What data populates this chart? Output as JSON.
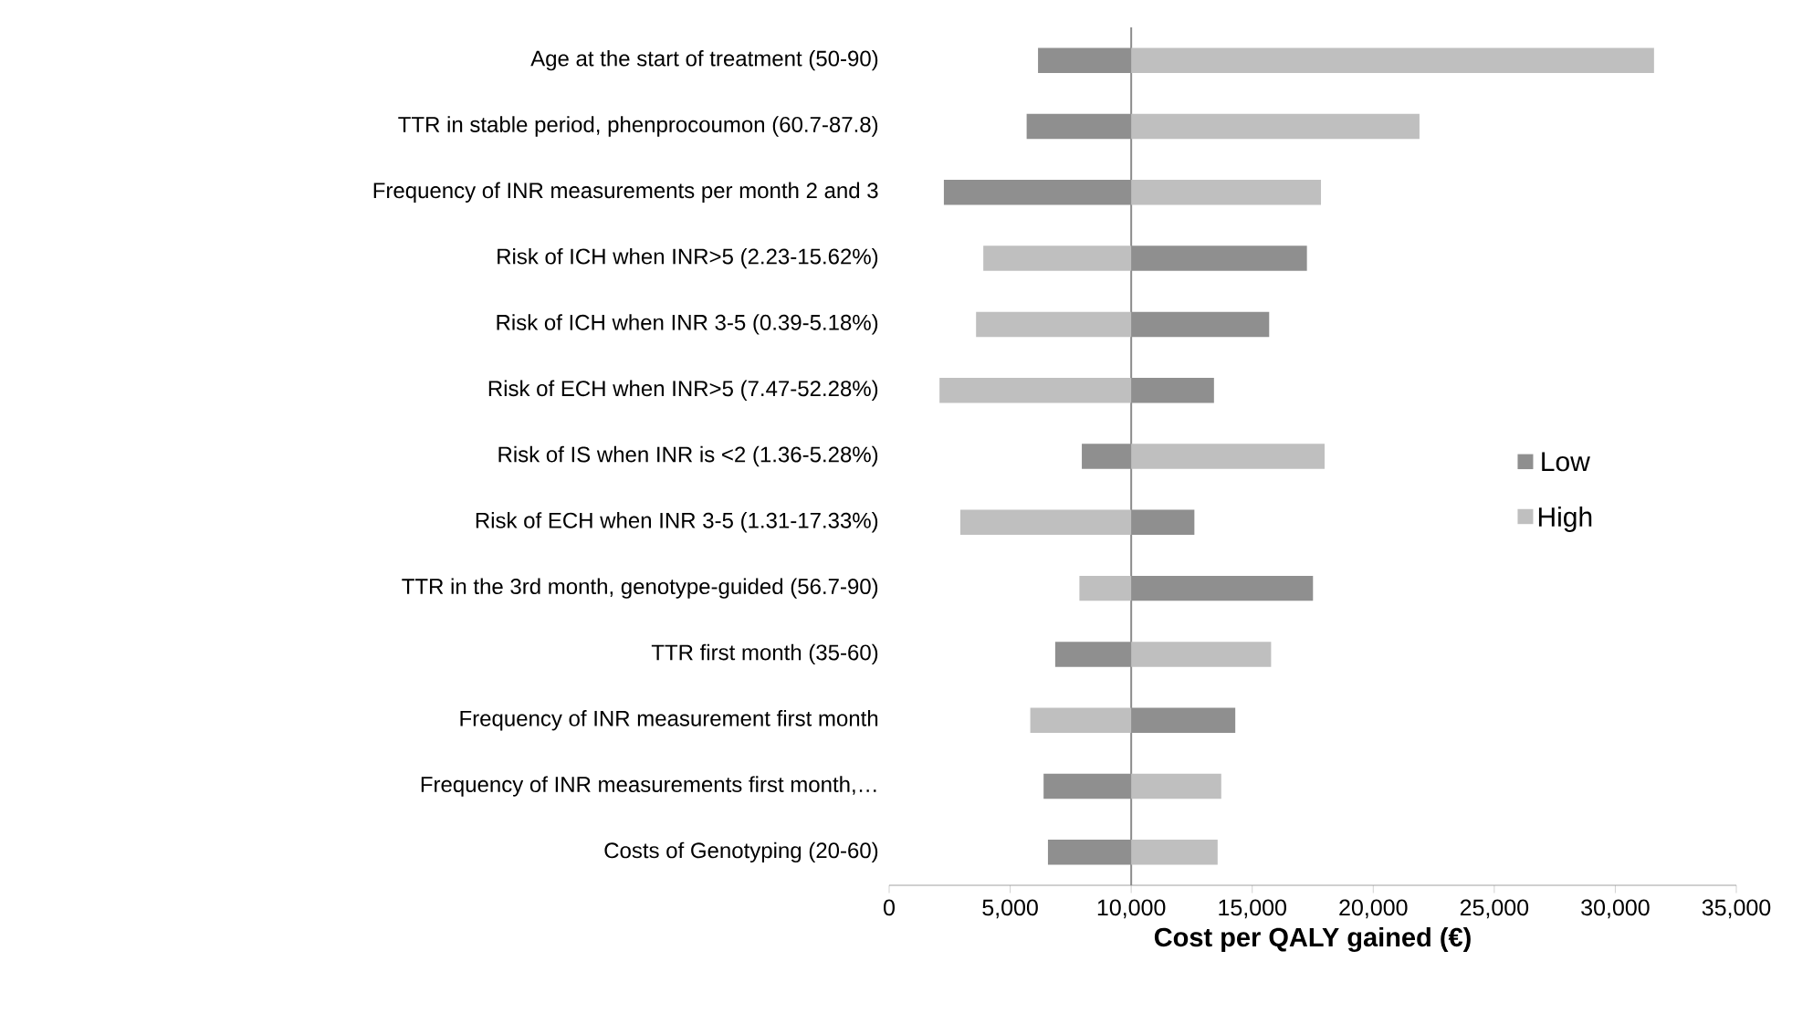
{
  "chart_data": {
    "type": "bar",
    "orientation": "horizontal",
    "xlabel": "Cost per QALY gained (€)",
    "categories": [
      "Age at the start of treatment (50-90)",
      "TTR in stable period, phenprocoumon (60.7-87.8)",
      "Frequency of INR measurements per month 2 and 3",
      "Risk of ICH when INR>5 (2.23-15.62%)",
      "Risk of ICH when INR 3-5 (0.39-5.18%)",
      "Risk of ECH when INR>5 (7.47-52.28%)",
      "Risk of IS when INR is <2 (1.36-5.28%)",
      "Risk of ECH when INR 3-5 (1.31-17.33%)",
      "TTR in the 3rd month, genotype-guided (56.7-90)",
      "TTR first month (35-60)",
      "Frequency of INR measurement first month",
      "Frequency of INR measurements first month,…",
      "Costs of Genotyping (20-60)"
    ],
    "series": [
      {
        "name": "Low",
        "color": "#8f8f8f",
        "base": [
          10000,
          10000,
          10000,
          10000,
          10000,
          10000,
          10000,
          10000,
          10000,
          10000,
          10000,
          10000,
          10000
        ],
        "values": [
          -3850,
          -4320,
          -7740,
          7260,
          5700,
          3420,
          -2040,
          2610,
          7510,
          -3140,
          4300,
          -3620,
          -3440
        ]
      },
      {
        "name": "High",
        "color": "#bfbfbf",
        "base": [
          10000,
          10000,
          10000,
          10000,
          10000,
          10000,
          10000,
          10000,
          10000,
          10000,
          10000,
          10000,
          10000
        ],
        "values": [
          21600,
          11910,
          7840,
          -6110,
          -6410,
          -7920,
          7990,
          -7060,
          -2140,
          5780,
          -4170,
          3720,
          3570
        ]
      }
    ],
    "xlim": [
      0,
      35000
    ],
    "xticks": [
      0,
      {
        "value": 5000,
        "label": "5,000"
      },
      {
        "value": 10000,
        "label": "10,000"
      },
      {
        "value": 15000,
        "label": "15,000"
      },
      {
        "value": 20000,
        "label": "20,000"
      },
      {
        "value": 25000,
        "label": "25,000"
      },
      {
        "value": 30000,
        "label": "30,000"
      },
      {
        "value": 35000,
        "label": "35,000"
      }
    ],
    "ref_lines": [
      {
        "axis": "x",
        "value": 10000,
        "color": "#8c8c8c"
      }
    ],
    "grid": false,
    "legend": "right"
  }
}
